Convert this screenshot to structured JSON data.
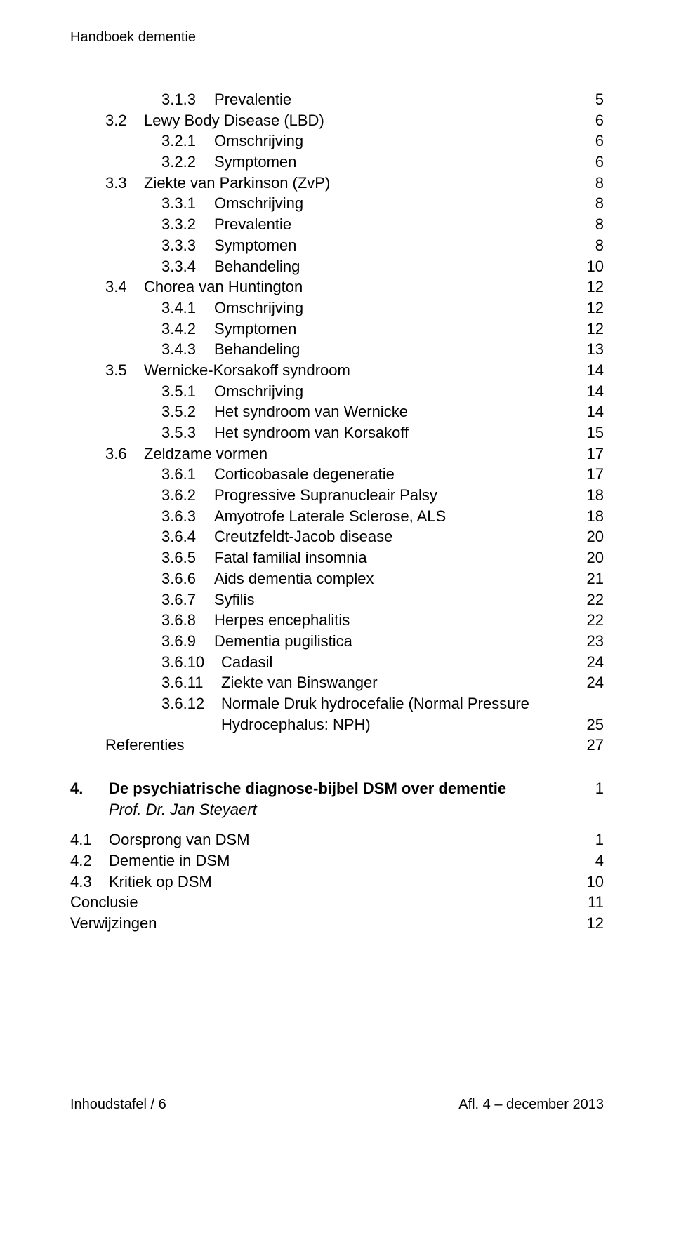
{
  "running_head": "Handboek dementie",
  "toc": [
    {
      "lvl": "sub",
      "num": "3.1.3",
      "label": "Prevalentie",
      "page": "5"
    },
    {
      "lvl": "sec",
      "num": "3.2",
      "label": "Lewy Body Disease (LBD)",
      "page": "6"
    },
    {
      "lvl": "sub",
      "num": "3.2.1",
      "label": "Omschrijving",
      "page": "6"
    },
    {
      "lvl": "sub",
      "num": "3.2.2",
      "label": "Symptomen",
      "page": "6"
    },
    {
      "lvl": "sec",
      "num": "3.3",
      "label": "Ziekte van Parkinson (ZvP)",
      "page": "8"
    },
    {
      "lvl": "sub",
      "num": "3.3.1",
      "label": "Omschrijving",
      "page": "8"
    },
    {
      "lvl": "sub",
      "num": "3.3.2",
      "label": "Prevalentie",
      "page": "8"
    },
    {
      "lvl": "sub",
      "num": "3.3.3",
      "label": "Symptomen",
      "page": "8"
    },
    {
      "lvl": "sub",
      "num": "3.3.4",
      "label": "Behandeling",
      "page": "10"
    },
    {
      "lvl": "sec",
      "num": "3.4",
      "label": "Chorea van Huntington",
      "page": "12"
    },
    {
      "lvl": "sub",
      "num": "3.4.1",
      "label": "Omschrijving",
      "page": "12"
    },
    {
      "lvl": "sub",
      "num": "3.4.2",
      "label": "Symptomen",
      "page": "12"
    },
    {
      "lvl": "sub",
      "num": "3.4.3",
      "label": "Behandeling",
      "page": "13"
    },
    {
      "lvl": "sec",
      "num": "3.5",
      "label": "Wernicke-Korsakoff syndroom",
      "page": "14"
    },
    {
      "lvl": "sub",
      "num": "3.5.1",
      "label": "Omschrijving",
      "page": "14"
    },
    {
      "lvl": "sub",
      "num": "3.5.2",
      "label": "Het syndroom van Wernicke",
      "page": "14"
    },
    {
      "lvl": "sub",
      "num": "3.5.3",
      "label": "Het syndroom van Korsakoff",
      "page": "15"
    },
    {
      "lvl": "sec",
      "num": "3.6",
      "label": "Zeldzame vormen",
      "page": "17"
    },
    {
      "lvl": "sub",
      "num": "3.6.1",
      "label": "Corticobasale degeneratie",
      "page": "17"
    },
    {
      "lvl": "sub",
      "num": "3.6.2",
      "label": "Progressive Supranucleair Palsy",
      "page": "18"
    },
    {
      "lvl": "sub",
      "num": "3.6.3",
      "label": "Amyotrofe Laterale Sclerose, ALS",
      "page": "18"
    },
    {
      "lvl": "sub",
      "num": "3.6.4",
      "label": "Creutzfeldt-Jacob disease",
      "page": "20"
    },
    {
      "lvl": "sub",
      "num": "3.6.5",
      "label": "Fatal familial insomnia",
      "page": "20"
    },
    {
      "lvl": "sub",
      "num": "3.6.6",
      "label": "Aids dementia complex",
      "page": "21"
    },
    {
      "lvl": "sub",
      "num": "3.6.7",
      "label": "Syfilis",
      "page": "22"
    },
    {
      "lvl": "sub",
      "num": "3.6.8",
      "label": "Herpes encephalitis",
      "page": "22"
    },
    {
      "lvl": "sub",
      "num": "3.6.9",
      "label": "Dementia pugilistica",
      "page": "23"
    },
    {
      "lvl": "subw",
      "num": "3.6.10",
      "label": "Cadasil",
      "page": "24"
    },
    {
      "lvl": "subw",
      "num": "3.6.11",
      "label": "Ziekte van Binswanger",
      "page": "24"
    },
    {
      "lvl": "subw",
      "num": "3.6.12",
      "label": "Normale Druk hydrocefalie (Normal Pressure",
      "page": ""
    },
    {
      "lvl": "cont",
      "num": "",
      "label": "Hydrocephalus: NPH)",
      "page": "25"
    },
    {
      "lvl": "ref",
      "num": "",
      "label": "Referenties",
      "page": "27"
    }
  ],
  "chapter": {
    "num": "4.",
    "title": "De psychiatrische diagnose-bijbel DSM over dementie",
    "page": "1",
    "author": "Prof. Dr. Jan Steyaert",
    "items": [
      {
        "num": "4.1",
        "label": "Oorsprong van DSM",
        "page": "1"
      },
      {
        "num": "4.2",
        "label": "Dementie in DSM",
        "page": "4"
      },
      {
        "num": "4.3",
        "label": "Kritiek op DSM",
        "page": "10"
      }
    ],
    "tail": [
      {
        "label": "Conclusie",
        "page": "11"
      },
      {
        "label": "Verwijzingen",
        "page": "12"
      }
    ]
  },
  "footer": {
    "left": "Inhoudstafel / 6",
    "right": "Afl. 4 – december 2013"
  }
}
